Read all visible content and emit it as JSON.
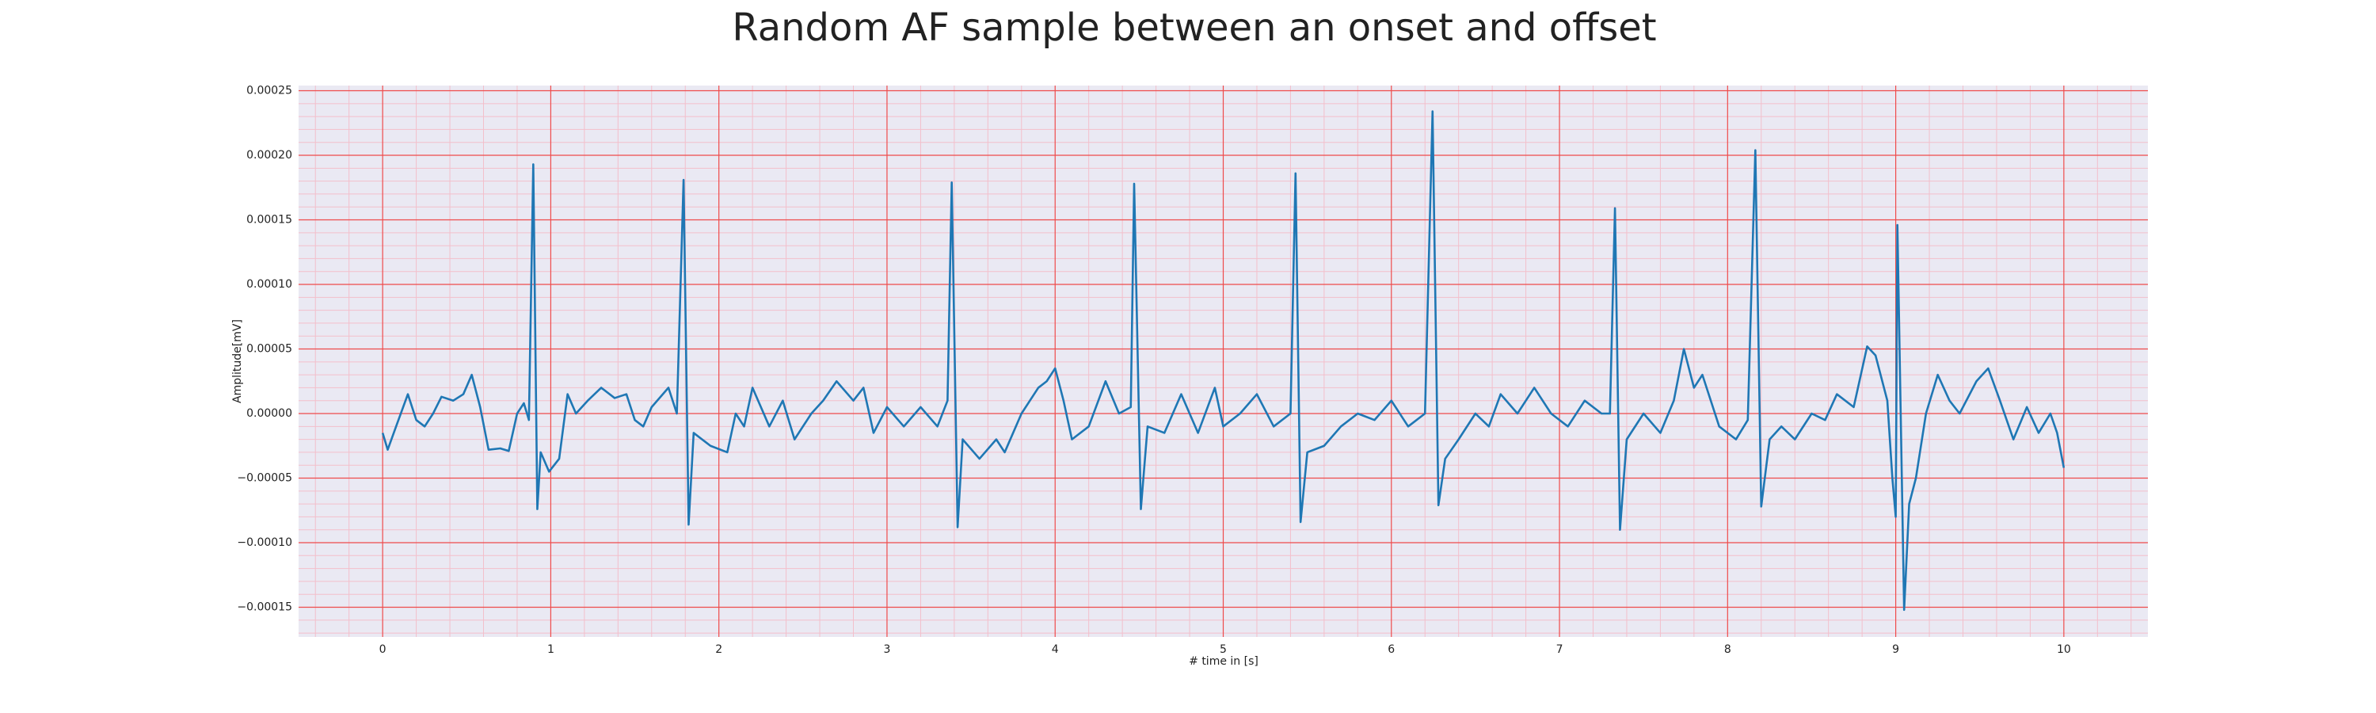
{
  "chart_data": {
    "type": "line",
    "title": "Random AF sample between an onset and offset",
    "xlabel": "# time in [s]",
    "ylabel": "Amplitude[mV]",
    "color": "#1f77b4",
    "grid": true,
    "minor_grid": true,
    "xlim": [
      -0.5,
      10.5
    ],
    "ylim": [
      -0.000173,
      0.000254
    ],
    "xticks": [
      0,
      1,
      2,
      3,
      4,
      5,
      6,
      7,
      8,
      9,
      10
    ],
    "yticks": [
      {
        "value": -0.00015,
        "label": "−0.00015"
      },
      {
        "value": -0.0001,
        "label": "−0.00010"
      },
      {
        "value": -5e-05,
        "label": "−0.00005"
      },
      {
        "value": 0,
        "label": "0.00000"
      },
      5e-05,
      {
        "value": 0.0001,
        "label": "0.00010"
      },
      0.00015,
      {
        "value": 0.0002,
        "label": "0.00020"
      },
      0.00025
    ],
    "x": [
      0,
      0.03,
      0.08,
      0.15,
      0.2,
      0.25,
      0.3,
      0.35,
      0.42,
      0.48,
      0.53,
      0.58,
      0.63,
      0.7,
      0.75,
      0.8,
      0.84,
      0.87,
      0.896,
      0.92,
      0.94,
      0.99,
      1.05,
      1.1,
      1.15,
      1.22,
      1.3,
      1.38,
      1.45,
      1.5,
      1.55,
      1.6,
      1.7,
      1.75,
      1.79,
      1.82,
      1.85,
      1.95,
      2.05,
      2.1,
      2.15,
      2.2,
      2.3,
      2.38,
      2.45,
      2.55,
      2.62,
      2.7,
      2.8,
      2.86,
      2.92,
      3.0,
      3.1,
      3.2,
      3.3,
      3.36,
      3.385,
      3.42,
      3.45,
      3.55,
      3.65,
      3.7,
      3.8,
      3.85,
      3.9,
      3.95,
      4.0,
      4.05,
      4.1,
      4.2,
      4.3,
      4.38,
      4.45,
      4.47,
      4.51,
      4.55,
      4.65,
      4.75,
      4.85,
      4.95,
      5.0,
      5.1,
      5.2,
      5.3,
      5.4,
      5.43,
      5.46,
      5.5,
      5.6,
      5.7,
      5.8,
      5.9,
      6.0,
      6.1,
      6.2,
      6.245,
      6.28,
      6.32,
      6.4,
      6.5,
      6.58,
      6.65,
      6.75,
      6.85,
      6.95,
      7.05,
      7.15,
      7.25,
      7.3,
      7.33,
      7.36,
      7.4,
      7.5,
      7.6,
      7.68,
      7.74,
      7.8,
      7.85,
      7.95,
      8.05,
      8.12,
      8.165,
      8.2,
      8.25,
      8.32,
      8.4,
      8.5,
      8.58,
      8.65,
      8.75,
      8.83,
      8.88,
      8.95,
      8.98,
      9.0,
      9.01,
      9.05,
      9.08,
      9.12,
      9.18,
      9.25,
      9.32,
      9.38,
      9.48,
      9.55,
      9.62,
      9.7,
      9.78,
      9.85,
      9.92,
      9.96,
      10.0
    ],
    "values": [
      -1.5e-05,
      -2.8e-05,
      -1e-05,
      1.5e-05,
      -5e-06,
      -1e-05,
      0,
      1.3e-05,
      1e-05,
      1.5e-05,
      3e-05,
      5e-06,
      -2.8e-05,
      -2.7e-05,
      -2.9e-05,
      0,
      8e-06,
      -5e-06,
      0.000193,
      -7.4e-05,
      -3e-05,
      -4.5e-05,
      -3.5e-05,
      1.5e-05,
      0,
      1e-05,
      2e-05,
      1.2e-05,
      1.5e-05,
      -5e-06,
      -1e-05,
      5e-06,
      2e-05,
      0,
      0.000181,
      -8.6e-05,
      -1.5e-05,
      -2.5e-05,
      -3e-05,
      0,
      -1e-05,
      2e-05,
      -1e-05,
      1e-05,
      -2e-05,
      0,
      1e-05,
      2.5e-05,
      1e-05,
      2e-05,
      -1.5e-05,
      5e-06,
      -1e-05,
      5e-06,
      -1e-05,
      1e-05,
      0.000179,
      -8.8e-05,
      -2e-05,
      -3.5e-05,
      -2e-05,
      -3e-05,
      0,
      1e-05,
      2e-05,
      2.5e-05,
      3.5e-05,
      1e-05,
      -2e-05,
      -1e-05,
      2.5e-05,
      0,
      5e-06,
      0.000178,
      -7.4e-05,
      -1e-05,
      -1.5e-05,
      1.5e-05,
      -1.5e-05,
      2e-05,
      -1e-05,
      0,
      1.5e-05,
      -1e-05,
      0,
      0.000186,
      -8.4e-05,
      -3e-05,
      -2.5e-05,
      -1e-05,
      0,
      -5e-06,
      1e-05,
      -1e-05,
      0,
      0.000234,
      -7.1e-05,
      -3.5e-05,
      -2e-05,
      0,
      -1e-05,
      1.5e-05,
      0,
      2e-05,
      0,
      -1e-05,
      1e-05,
      0,
      0,
      0.000159,
      -9e-05,
      -2e-05,
      0,
      -1.5e-05,
      1e-05,
      5e-05,
      2e-05,
      3e-05,
      -1e-05,
      -2e-05,
      -5e-06,
      0.000204,
      -7.2e-05,
      -2e-05,
      -1e-05,
      -2e-05,
      0,
      -5e-06,
      1.5e-05,
      5e-06,
      5.2e-05,
      4.5e-05,
      1e-05,
      -5e-05,
      -8e-05,
      0.000146,
      -0.000152,
      -7e-05,
      -5e-05,
      0,
      3e-05,
      1e-05,
      0,
      2.5e-05,
      3.5e-05,
      1e-05,
      -2e-05,
      5e-06,
      -1.5e-05,
      0,
      -1.5e-05,
      -4.2e-05
    ]
  }
}
